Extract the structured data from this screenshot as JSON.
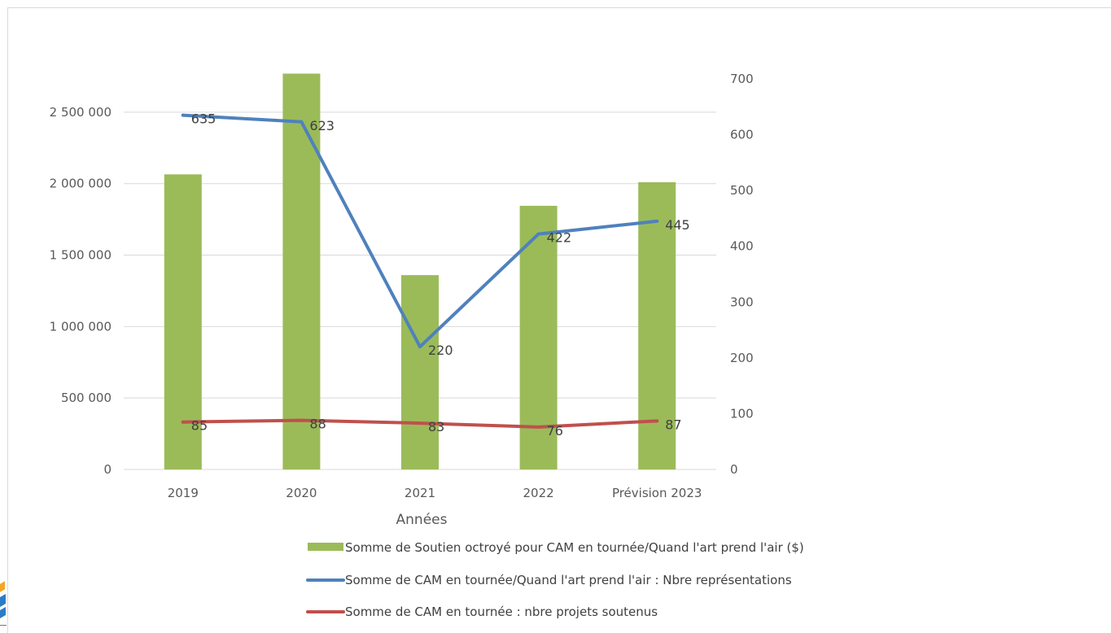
{
  "chart_data": {
    "type": "bar",
    "categories": [
      "2019",
      "2020",
      "2021",
      "2022",
      "Prévision 2023"
    ],
    "xlabel": "Années",
    "ylabel": "",
    "ylim": [
      0,
      2750000
    ],
    "y_ticks": [
      "0",
      "500 000",
      "1 000 000",
      "1 500 000",
      "2 000 000",
      "2 500 000"
    ],
    "y2lim": [
      0,
      700
    ],
    "y2_ticks": [
      "0",
      "100",
      "200",
      "300",
      "400",
      "500",
      "600",
      "700"
    ],
    "grid": true,
    "legend_position": "bottom",
    "series": [
      {
        "name": "Somme de Soutien octroyé pour CAM en tournée/Quand l'art prend l'air ($)",
        "type": "bar",
        "axis": "left",
        "color": "#9bbb59",
        "values": [
          2065000,
          2770000,
          1360000,
          1845000,
          2010000
        ]
      },
      {
        "name": "Somme de CAM en tournée/Quand l'art prend l'air : Nbre représentations",
        "type": "line",
        "axis": "right",
        "color": "#4f81bd",
        "values": [
          635,
          623,
          220,
          422,
          445
        ],
        "labels": [
          "635",
          "623",
          "220",
          "422",
          "445"
        ]
      },
      {
        "name": "Somme de CAM en tournée : nbre projets soutenus",
        "type": "line",
        "axis": "right",
        "color": "#c0504d",
        "values": [
          85,
          88,
          83,
          76,
          87
        ],
        "labels": [
          "85",
          "88",
          "83",
          "76",
          "87"
        ]
      }
    ]
  }
}
